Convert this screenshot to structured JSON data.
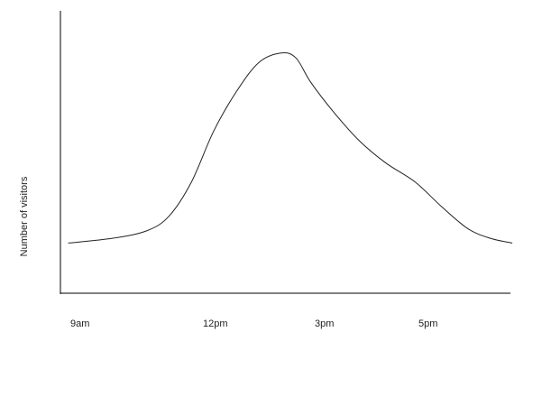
{
  "chart_data": {
    "type": "line",
    "title": "",
    "xlabel": "",
    "ylabel": "Number of visitors",
    "x_ticks": [
      "9am",
      "12pm",
      "3pm",
      "5pm"
    ],
    "grid": false,
    "legend": "none",
    "y_ticks_shown": false,
    "line_color": "#222222",
    "series": [
      {
        "values": [
          {
            "x": "8:45am",
            "y": 18
          },
          {
            "x": "9:45am",
            "y": 20
          },
          {
            "x": "10:30am",
            "y": 23
          },
          {
            "x": "11:00am",
            "y": 29
          },
          {
            "x": "11:30am",
            "y": 43
          },
          {
            "x": "12:00pm",
            "y": 64
          },
          {
            "x": "12:30pm",
            "y": 80
          },
          {
            "x": "1:00pm",
            "y": 92
          },
          {
            "x": "1:30pm",
            "y": 96
          },
          {
            "x": "1:50pm",
            "y": 94
          },
          {
            "x": "2:10pm",
            "y": 84
          },
          {
            "x": "2:40pm",
            "y": 72
          },
          {
            "x": "3:15pm",
            "y": 60
          },
          {
            "x": "3:50pm",
            "y": 51
          },
          {
            "x": "4:30pm",
            "y": 43
          },
          {
            "x": "5:05pm",
            "y": 33
          },
          {
            "x": "5:40pm",
            "y": 24
          },
          {
            "x": "6:10pm",
            "y": 20
          },
          {
            "x": "6:40pm",
            "y": 18
          }
        ]
      }
    ]
  }
}
